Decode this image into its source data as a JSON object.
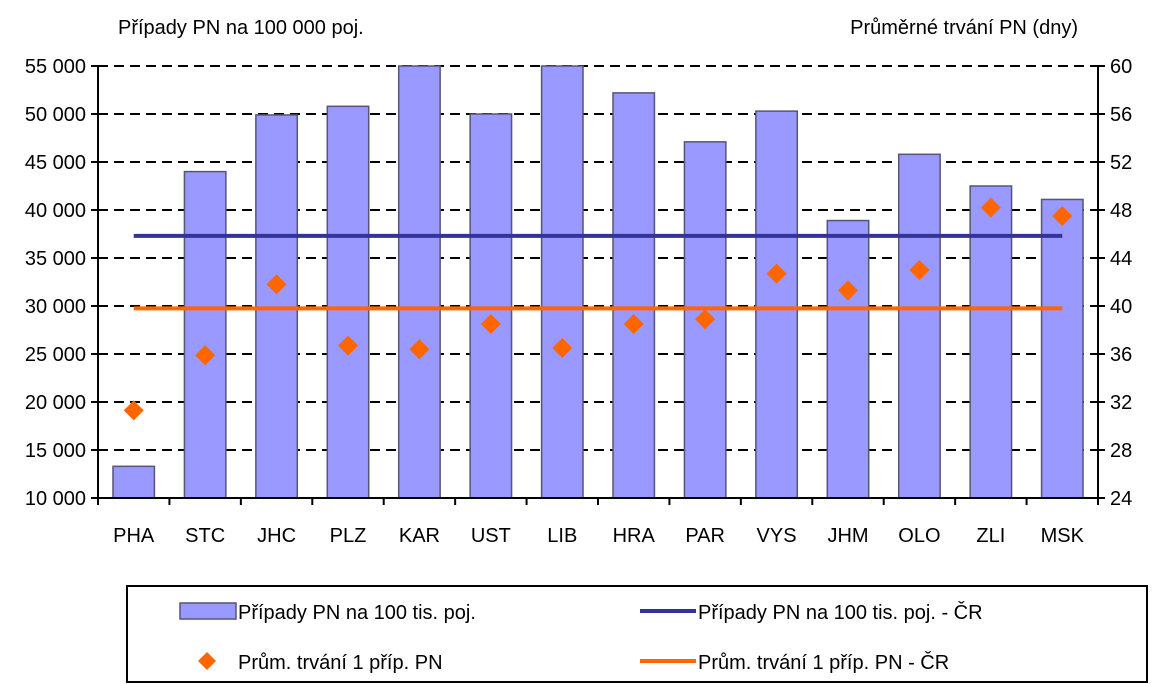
{
  "chart_data": {
    "type": "bar",
    "left_axis_title": "Případy PN na 100 000 poj.",
    "right_axis_title": "Průměrné trvání PN (dny)",
    "categories": [
      "PHA",
      "STC",
      "JHC",
      "PLZ",
      "KAR",
      "UST",
      "LIB",
      "HRA",
      "PAR",
      "VYS",
      "JHM",
      "OLO",
      "ZLI",
      "MSK"
    ],
    "y_left": {
      "min": 10000,
      "max": 55000,
      "ticks": [
        10000,
        15000,
        20000,
        25000,
        30000,
        35000,
        40000,
        45000,
        50000,
        55000
      ],
      "tick_labels": [
        "10 000",
        "15 000",
        "20 000",
        "25 000",
        "30 000",
        "35 000",
        "40 000",
        "45 000",
        "50 000",
        "55 000"
      ]
    },
    "y_right": {
      "min": 24,
      "max": 60,
      "ticks": [
        24,
        28,
        32,
        36,
        40,
        44,
        48,
        52,
        56,
        60
      ],
      "tick_labels": [
        "24",
        "28",
        "32",
        "36",
        "40",
        "44",
        "48",
        "52",
        "56",
        "60"
      ]
    },
    "grid": "horizontal-dashed",
    "series": [
      {
        "name": "Případy PN na 100 tis. poj.",
        "kind": "bar",
        "axis": "left",
        "color": "#9999ff",
        "values": [
          13300,
          44000,
          49900,
          50800,
          55000,
          50000,
          55000,
          52200,
          47100,
          50300,
          38900,
          45800,
          42500,
          41100
        ]
      },
      {
        "name": "Prům. trvání 1 příp. PN",
        "kind": "marker",
        "axis": "right",
        "color": "#ff6600",
        "values": [
          31.3,
          35.9,
          41.8,
          36.7,
          36.4,
          38.5,
          36.5,
          38.5,
          38.9,
          42.7,
          41.3,
          43.0,
          48.2,
          47.5
        ]
      },
      {
        "name": "Případy PN na 100 tis. poj. - ČR",
        "kind": "line",
        "axis": "left",
        "color": "#333399",
        "value": 37300
      },
      {
        "name": "Prům. trvání 1 příp. PN - ČR",
        "kind": "line",
        "axis": "right",
        "color": "#ff6600",
        "value": 39.8
      }
    ],
    "legend": {
      "placement": "bottom",
      "entries": [
        "Případy PN na 100 tis. poj.",
        "Případy PN na 100 tis. poj. - ČR",
        "Prům. trvání 1 příp. PN",
        "Prům. trvání 1 příp. PN - ČR"
      ]
    }
  }
}
